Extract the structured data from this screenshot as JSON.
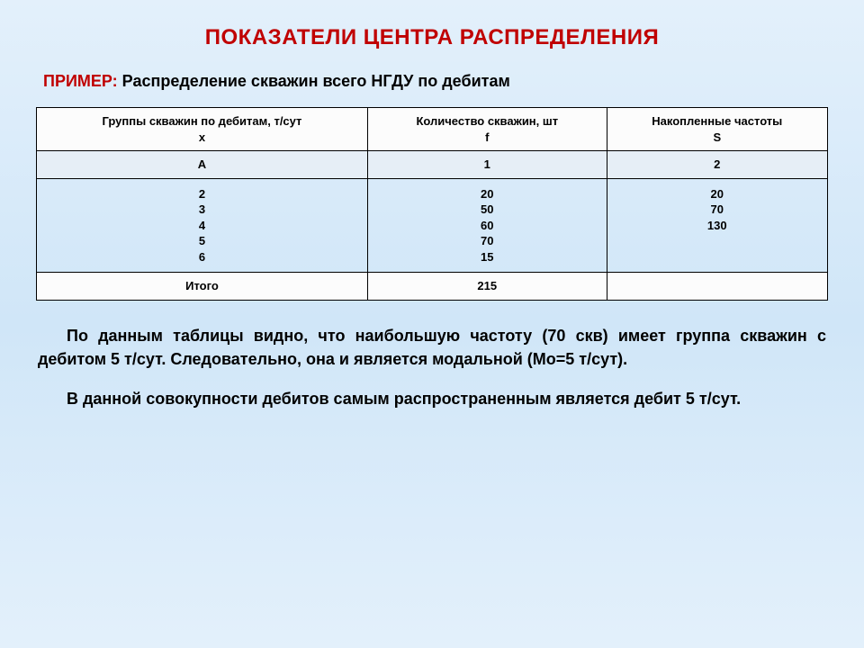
{
  "colors": {
    "accent": "#c00000",
    "background_top": "#e3f0fb",
    "background_mid": "#d0e6f8",
    "border": "#000000",
    "header_bg": "#fcfcfc",
    "row_a_bg": "#e6eef6"
  },
  "title": "ПОКАЗАТЕЛИ ЦЕНТРА РАСПРЕДЕЛЕНИЯ",
  "subtitle": {
    "label": "ПРИМЕР:",
    "text": "Распределение скважин всего НГДУ по дебитам"
  },
  "table": {
    "headers": [
      "Группы скважин по дебитам, т/сут\nx",
      "Количество скважин, шт\nf",
      "Накопленные частоты\nS"
    ],
    "row_a": [
      "А",
      "1",
      "2"
    ],
    "row_data": [
      "2\n3\n4\n5\n6",
      "20\n50\n60\n70\n15",
      "20\n70\n130"
    ],
    "row_total": [
      "Итого",
      "215",
      ""
    ]
  },
  "paragraphs": [
    "По данным таблицы видно, что наибольшую частоту (70 скв) имеет группа скважин с дебитом 5 т/сут. Следовательно, она и является модальной (Мо=5 т/сут).",
    "В данной совокупности дебитов самым распространенным является дебит 5 т/сут."
  ]
}
